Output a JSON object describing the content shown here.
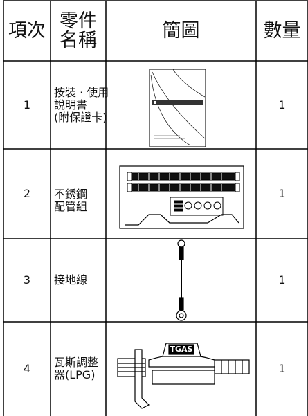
{
  "table": {
    "header": {
      "item": "項次",
      "part_name": [
        "零件",
        "名稱"
      ],
      "diagram": "簡圖",
      "quantity": "數量"
    },
    "rows": [
      {
        "item": "1",
        "name": [
          "按裝 · 使用",
          "說明書",
          "(附保證卡)"
        ],
        "quantity": "1"
      },
      {
        "item": "2",
        "name": [
          "不銹鋼",
          "配管組"
        ],
        "quantity": "1"
      },
      {
        "item": "3",
        "name": [
          "接地線"
        ],
        "quantity": "1"
      },
      {
        "item": "4",
        "name": [
          "瓦斯調整",
          "器(LPG)"
        ],
        "quantity": "1",
        "image_text": "TGAS"
      }
    ]
  }
}
